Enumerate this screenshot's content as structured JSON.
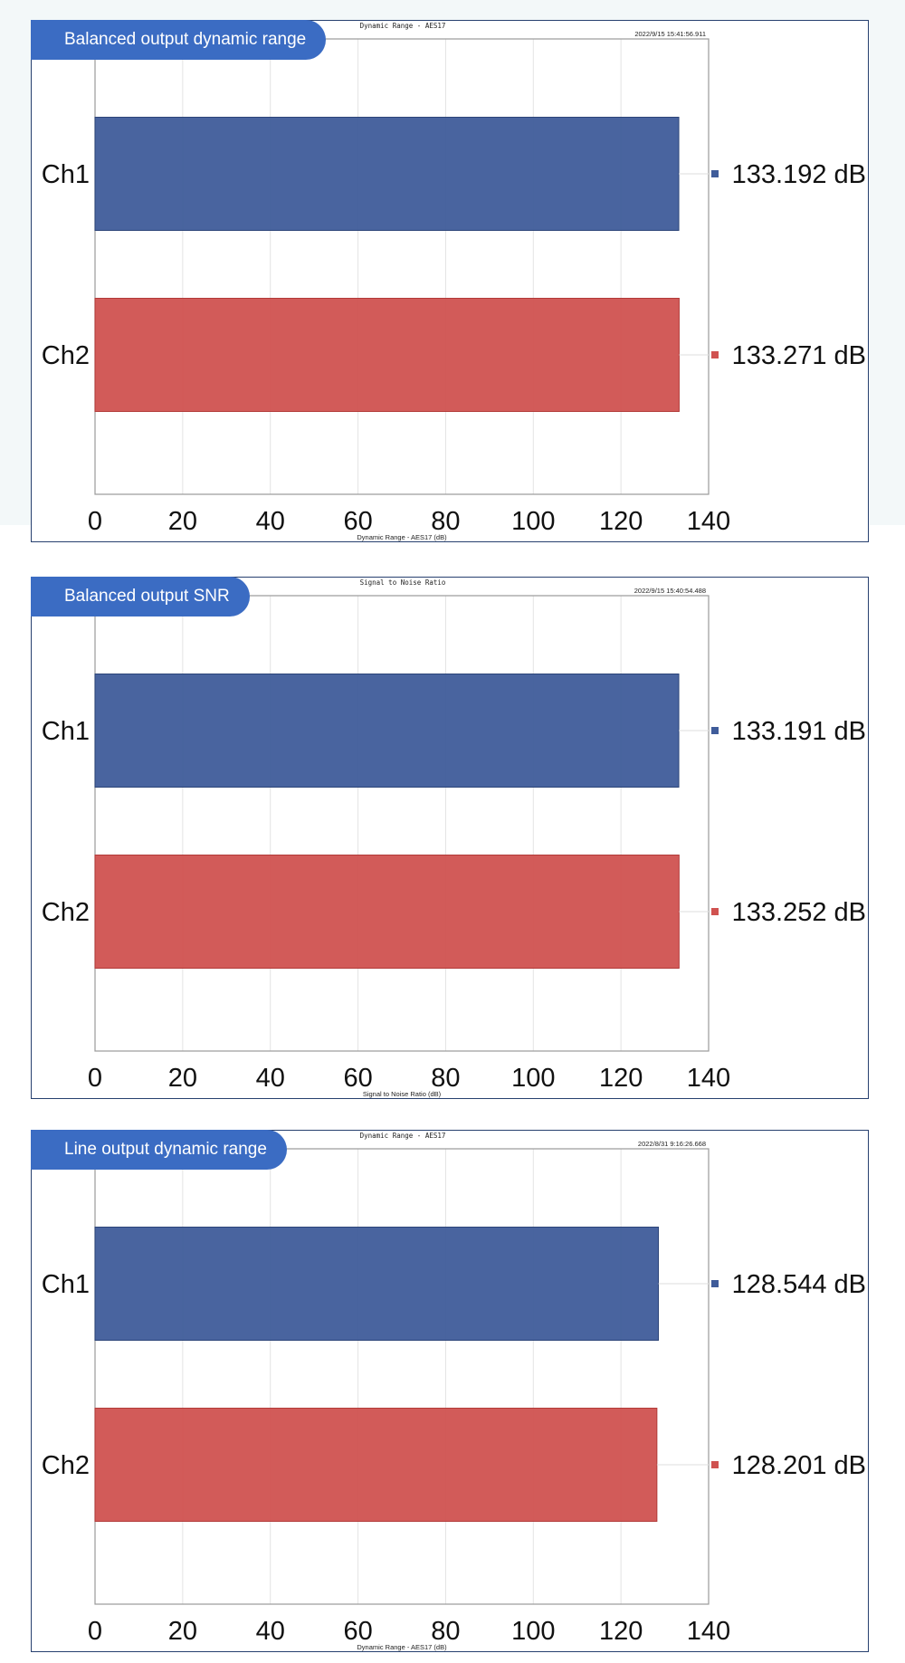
{
  "chart_data": [
    {
      "type": "bar",
      "badge": "Balanced output dynamic range",
      "title": "Dynamic Range - AES17",
      "timestamp": "2022/9/15 15:41:56.911",
      "xlabel": "Dynamic Range - AES17 (dB)",
      "xlim": [
        0,
        140
      ],
      "xticks": [
        0,
        20,
        40,
        60,
        80,
        100,
        120,
        140
      ],
      "categories": [
        "Ch1",
        "Ch2"
      ],
      "values": [
        133.192,
        133.271
      ],
      "value_labels": [
        "133.192 dB",
        "133.271 dB"
      ],
      "colors": [
        "#3f5c9a",
        "#d05250"
      ],
      "grid": true
    },
    {
      "type": "bar",
      "badge": "Balanced output SNR",
      "title": "Signal to Noise Ratio",
      "timestamp": "2022/9/15 15:40:54.488",
      "xlabel": "Signal to Noise Ratio (dB)",
      "xlim": [
        0,
        140
      ],
      "xticks": [
        0,
        20,
        40,
        60,
        80,
        100,
        120,
        140
      ],
      "categories": [
        "Ch1",
        "Ch2"
      ],
      "values": [
        133.191,
        133.252
      ],
      "value_labels": [
        "133.191 dB",
        "133.252 dB"
      ],
      "colors": [
        "#3f5c9a",
        "#d05250"
      ],
      "grid": true
    },
    {
      "type": "bar",
      "badge": "Line output dynamic range",
      "title": "Dynamic Range - AES17",
      "timestamp": "2022/8/31 9:16:26.668",
      "xlabel": "Dynamic Range - AES17 (dB)",
      "xlim": [
        0,
        140
      ],
      "xticks": [
        0,
        20,
        40,
        60,
        80,
        100,
        120,
        140
      ],
      "categories": [
        "Ch1",
        "Ch2"
      ],
      "values": [
        128.544,
        128.201
      ],
      "value_labels": [
        "128.544 dB",
        "128.201 dB"
      ],
      "colors": [
        "#3f5c9a",
        "#d05250"
      ],
      "grid": true
    }
  ]
}
